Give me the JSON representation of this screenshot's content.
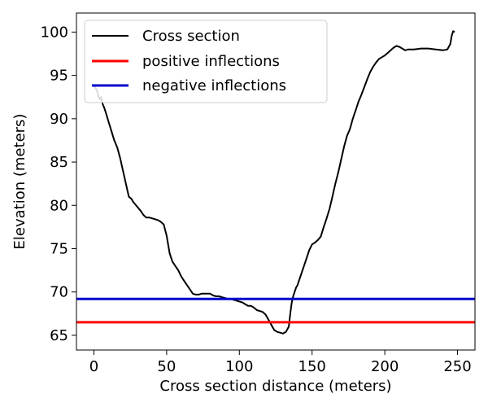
{
  "chart_data": {
    "type": "line",
    "xlabel": "Cross section distance (meters)",
    "ylabel": "Elevation (meters)",
    "xlim": [
      -12,
      262
    ],
    "ylim": [
      63.3,
      102.2
    ],
    "xticks": [
      0,
      50,
      100,
      150,
      200,
      250
    ],
    "yticks": [
      65,
      70,
      75,
      80,
      85,
      90,
      95,
      100
    ],
    "grid": false,
    "legend_position": "upper-left",
    "series": [
      {
        "name": "Cross section",
        "color": "#000000",
        "x": [
          0,
          2,
          3,
          4,
          5,
          6,
          7,
          8,
          10,
          12,
          14,
          16,
          18,
          20,
          22,
          24,
          26,
          27,
          28,
          30,
          32,
          34,
          36,
          38,
          40,
          42,
          44,
          46,
          48,
          50,
          51,
          52,
          53,
          54,
          56,
          58,
          60,
          62,
          64,
          66,
          68,
          70,
          72,
          74,
          76,
          78,
          80,
          82,
          84,
          86,
          88,
          90,
          92,
          94,
          96,
          98,
          100,
          102,
          104,
          106,
          108,
          110,
          112,
          114,
          116,
          118,
          120,
          122,
          124,
          126,
          128,
          130,
          132,
          134,
          135,
          136,
          137,
          138,
          139,
          140,
          142,
          144,
          146,
          148,
          150,
          152,
          154,
          156,
          158,
          160,
          162,
          164,
          166,
          168,
          170,
          172,
          174,
          176,
          178,
          180,
          182,
          184,
          186,
          188,
          190,
          192,
          194,
          196,
          198,
          200,
          202,
          204,
          206,
          208,
          210,
          212,
          214,
          216,
          218,
          220,
          225,
          230,
          235,
          240,
          243,
          245,
          246,
          247,
          248
        ],
        "y": [
          93.8,
          93.3,
          92.7,
          92.2,
          92.5,
          91.7,
          91.3,
          90.8,
          89.7,
          88.6,
          87.5,
          86.7,
          85.5,
          84.0,
          82.5,
          81.0,
          80.7,
          80.4,
          80.2,
          79.8,
          79.4,
          78.9,
          78.6,
          78.6,
          78.5,
          78.4,
          78.3,
          78.1,
          77.8,
          76.5,
          75.5,
          74.5,
          74.0,
          73.5,
          73.0,
          72.5,
          71.8,
          71.3,
          70.8,
          70.3,
          69.8,
          69.7,
          69.7,
          69.8,
          69.8,
          69.8,
          69.8,
          69.6,
          69.5,
          69.5,
          69.4,
          69.3,
          69.2,
          69.2,
          69.1,
          69.0,
          68.9,
          68.8,
          68.6,
          68.4,
          68.4,
          68.2,
          67.9,
          67.8,
          67.7,
          67.4,
          66.8,
          66.2,
          65.6,
          65.4,
          65.3,
          65.2,
          65.4,
          66.0,
          67.5,
          68.8,
          69.5,
          70.0,
          70.5,
          70.8,
          71.8,
          72.8,
          73.8,
          74.8,
          75.5,
          75.7,
          76.0,
          76.4,
          77.5,
          78.5,
          79.6,
          81.0,
          82.5,
          83.8,
          85.3,
          86.8,
          88.0,
          88.8,
          90.0,
          91.0,
          92.0,
          92.8,
          93.7,
          94.6,
          95.4,
          96.0,
          96.5,
          96.9,
          97.1,
          97.3,
          97.6,
          97.9,
          98.2,
          98.4,
          98.3,
          98.1,
          97.9,
          98.0,
          98.0,
          98.0,
          98.1,
          98.1,
          98.0,
          97.9,
          98.0,
          98.6,
          99.6,
          100.1,
          100.0
        ]
      },
      {
        "name": "positive inflections",
        "color": "#ff0000",
        "x": [
          -12,
          262
        ],
        "y": [
          66.5,
          66.5
        ]
      },
      {
        "name": "negative inflections",
        "color": "#0000cc",
        "x": [
          -12,
          262
        ],
        "y": [
          69.2,
          69.2
        ]
      }
    ]
  }
}
